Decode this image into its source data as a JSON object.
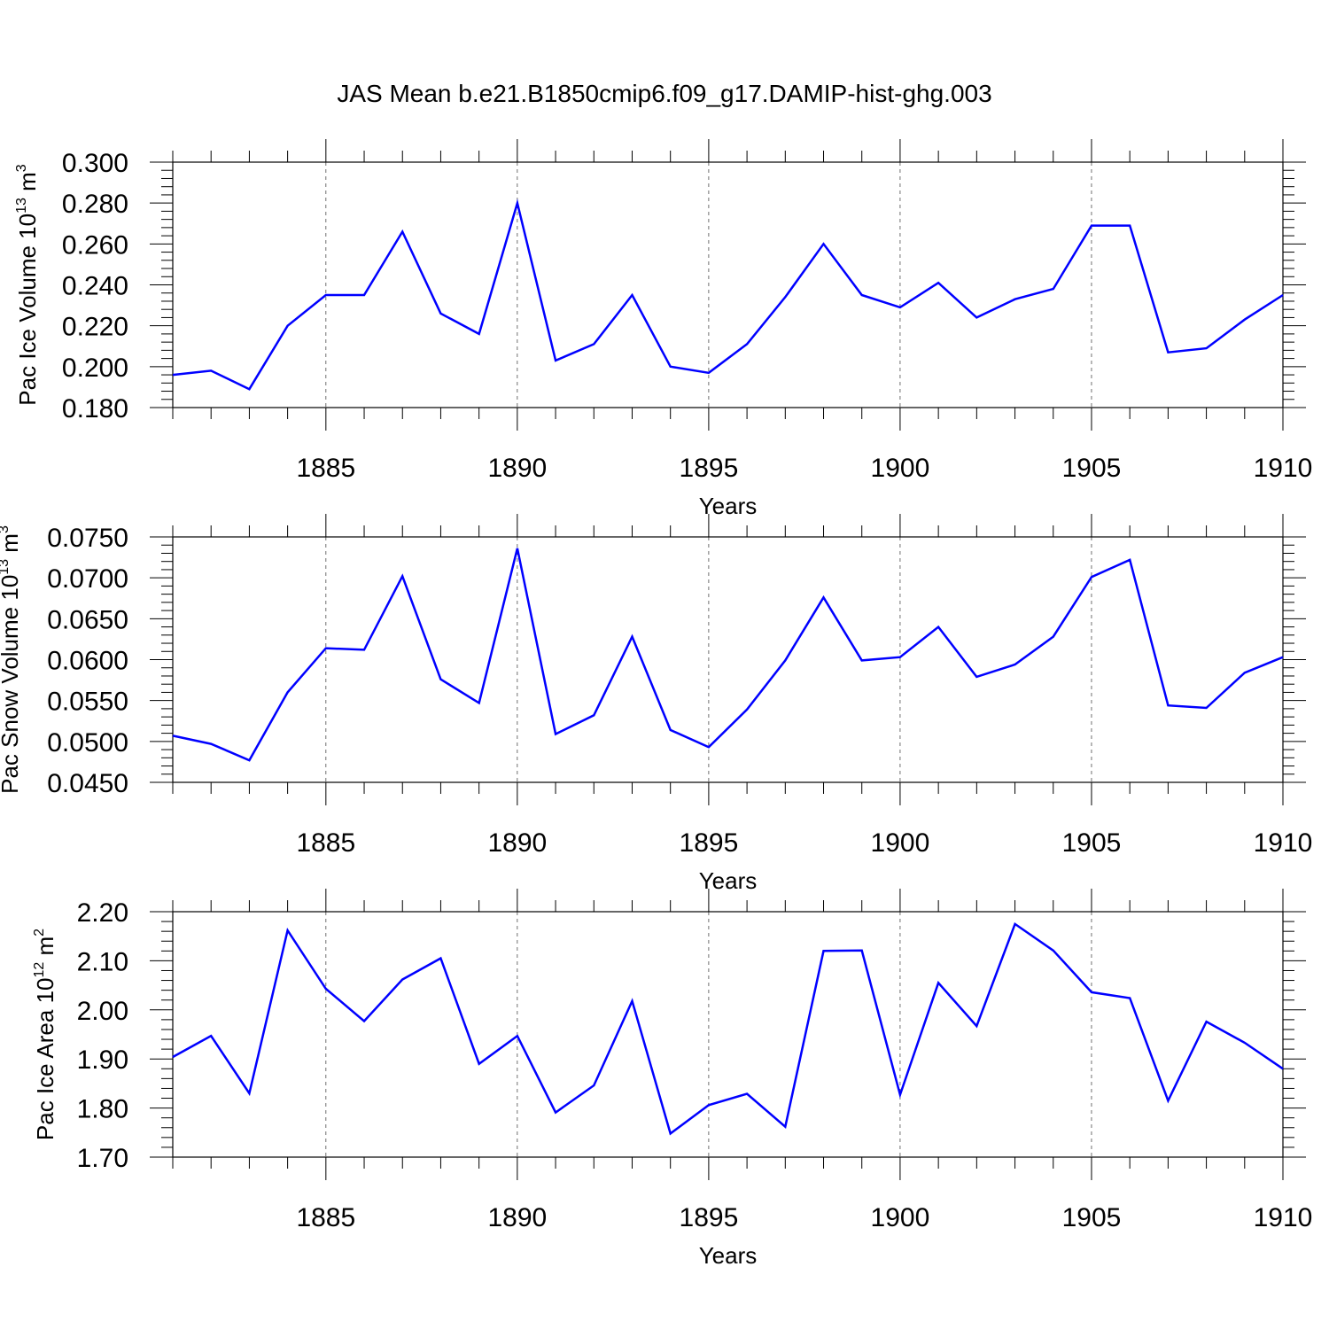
{
  "figure_title": "JAS Mean b.e21.B1850cmip6.f09_g17.DAMIP-hist-ghg.003",
  "colors": {
    "line": "#0000ff",
    "axis": "#000000",
    "grid": "#000000"
  },
  "chart_data": [
    {
      "type": "line",
      "title": "",
      "xlabel": "Years",
      "ylabel": "Pac Ice Volume 10",
      "ylabel_exp": "13",
      "ylabel_unit": " m",
      "ylabel_unit_exp": "3",
      "xlim": [
        1881,
        1910
      ],
      "ylim": [
        0.18,
        0.3
      ],
      "xticks": [
        1885,
        1890,
        1895,
        1900,
        1905,
        1910
      ],
      "xtick_labels": [
        "1885",
        "1890",
        "1895",
        "1900",
        "1905",
        "1910"
      ],
      "yticks": [
        0.18,
        0.2,
        0.22,
        0.24,
        0.26,
        0.28,
        0.3
      ],
      "ytick_labels": [
        "0.180",
        "0.200",
        "0.220",
        "0.240",
        "0.260",
        "0.280",
        "0.300"
      ],
      "grid": "vertical dashed at major x ticks",
      "series": [
        {
          "name": "Pac Ice Volume",
          "x": [
            1881,
            1882,
            1883,
            1884,
            1885,
            1886,
            1887,
            1888,
            1889,
            1890,
            1891,
            1892,
            1893,
            1894,
            1895,
            1896,
            1897,
            1898,
            1899,
            1900,
            1901,
            1902,
            1903,
            1904,
            1905,
            1906,
            1907,
            1908,
            1909,
            1910
          ],
          "values": [
            0.196,
            0.198,
            0.189,
            0.22,
            0.235,
            0.235,
            0.266,
            0.226,
            0.216,
            0.28,
            0.203,
            0.211,
            0.235,
            0.2,
            0.197,
            0.211,
            0.234,
            0.26,
            0.235,
            0.229,
            0.241,
            0.224,
            0.233,
            0.238,
            0.269,
            0.269,
            0.207,
            0.209,
            0.223,
            0.235
          ]
        }
      ]
    },
    {
      "type": "line",
      "title": "",
      "xlabel": "Years",
      "ylabel": "Pac Snow Volume 10",
      "ylabel_exp": "13",
      "ylabel_unit": " m",
      "ylabel_unit_exp": "3",
      "xlim": [
        1881,
        1910
      ],
      "ylim": [
        0.045,
        0.075
      ],
      "xticks": [
        1885,
        1890,
        1895,
        1900,
        1905,
        1910
      ],
      "xtick_labels": [
        "1885",
        "1890",
        "1895",
        "1900",
        "1905",
        "1910"
      ],
      "yticks": [
        0.045,
        0.05,
        0.055,
        0.06,
        0.065,
        0.07,
        0.075
      ],
      "ytick_labels": [
        "0.0450",
        "0.0500",
        "0.0550",
        "0.0600",
        "0.0650",
        "0.0700",
        "0.0750"
      ],
      "grid": "vertical dashed at major x ticks",
      "series": [
        {
          "name": "Pac Snow Volume",
          "x": [
            1881,
            1882,
            1883,
            1884,
            1885,
            1886,
            1887,
            1888,
            1889,
            1890,
            1891,
            1892,
            1893,
            1894,
            1895,
            1896,
            1897,
            1898,
            1899,
            1900,
            1901,
            1902,
            1903,
            1904,
            1905,
            1906,
            1907,
            1908,
            1909,
            1910
          ],
          "values": [
            0.0507,
            0.0497,
            0.0477,
            0.056,
            0.0614,
            0.0612,
            0.0702,
            0.0576,
            0.0547,
            0.0736,
            0.0509,
            0.0532,
            0.0628,
            0.0514,
            0.0493,
            0.0539,
            0.0599,
            0.0676,
            0.0599,
            0.0603,
            0.064,
            0.0579,
            0.0594,
            0.0628,
            0.0701,
            0.0722,
            0.0544,
            0.0541,
            0.0584,
            0.0603
          ]
        }
      ]
    },
    {
      "type": "line",
      "title": "",
      "xlabel": "Years",
      "ylabel": "Pac Ice Area 10",
      "ylabel_exp": "12",
      "ylabel_unit": " m",
      "ylabel_unit_exp": "2",
      "xlim": [
        1881,
        1910
      ],
      "ylim": [
        1.7,
        2.2
      ],
      "xticks": [
        1885,
        1890,
        1895,
        1900,
        1905,
        1910
      ],
      "xtick_labels": [
        "1885",
        "1890",
        "1895",
        "1900",
        "1905",
        "1910"
      ],
      "yticks": [
        1.7,
        1.8,
        1.9,
        2.0,
        2.1,
        2.2
      ],
      "ytick_labels": [
        "1.70",
        "1.80",
        "1.90",
        "2.00",
        "2.10",
        "2.20"
      ],
      "grid": "vertical dashed at major x ticks",
      "series": [
        {
          "name": "Pac Ice Area",
          "x": [
            1881,
            1882,
            1883,
            1884,
            1885,
            1886,
            1887,
            1888,
            1889,
            1890,
            1891,
            1892,
            1893,
            1894,
            1895,
            1896,
            1897,
            1898,
            1899,
            1900,
            1901,
            1902,
            1903,
            1904,
            1905,
            1906,
            1907,
            1908,
            1909,
            1910
          ],
          "values": [
            1.904,
            1.947,
            1.83,
            2.162,
            2.043,
            1.977,
            2.062,
            2.105,
            1.89,
            1.947,
            1.791,
            1.846,
            2.018,
            1.748,
            1.806,
            1.829,
            1.762,
            2.12,
            2.121,
            1.827,
            2.055,
            1.967,
            2.175,
            2.121,
            2.036,
            2.024,
            1.815,
            1.976,
            1.933,
            1.88
          ]
        }
      ]
    }
  ]
}
